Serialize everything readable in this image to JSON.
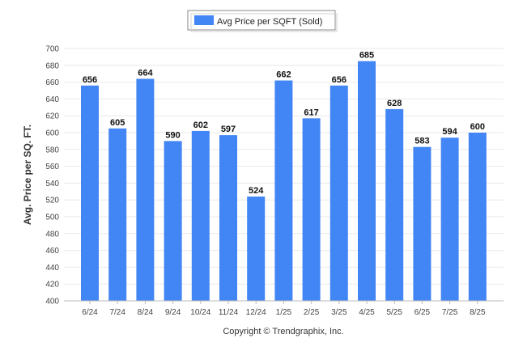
{
  "chart_data": {
    "type": "bar",
    "categories": [
      "6/24",
      "7/24",
      "8/24",
      "9/24",
      "10/24",
      "11/24",
      "12/24",
      "1/25",
      "2/25",
      "3/25",
      "4/25",
      "5/25",
      "6/25",
      "7/25",
      "8/25"
    ],
    "series": [
      {
        "name": "Avg Price per SQFT (Sold)",
        "values": [
          656,
          605,
          664,
          590,
          602,
          597,
          524,
          662,
          617,
          656,
          685,
          628,
          583,
          594,
          600
        ],
        "color": "#4285f4"
      }
    ],
    "ylabel": "Avg. Price per SQ. FT.",
    "xlabel": "",
    "ylim": [
      400,
      700
    ],
    "yticks": [
      400,
      420,
      440,
      460,
      480,
      500,
      520,
      540,
      560,
      580,
      600,
      620,
      640,
      660,
      680,
      700
    ],
    "grid": true,
    "legend_position": "top-center",
    "data_labels": true
  },
  "footer": {
    "copyright": "Copyright © Trendgraphix, Inc."
  }
}
